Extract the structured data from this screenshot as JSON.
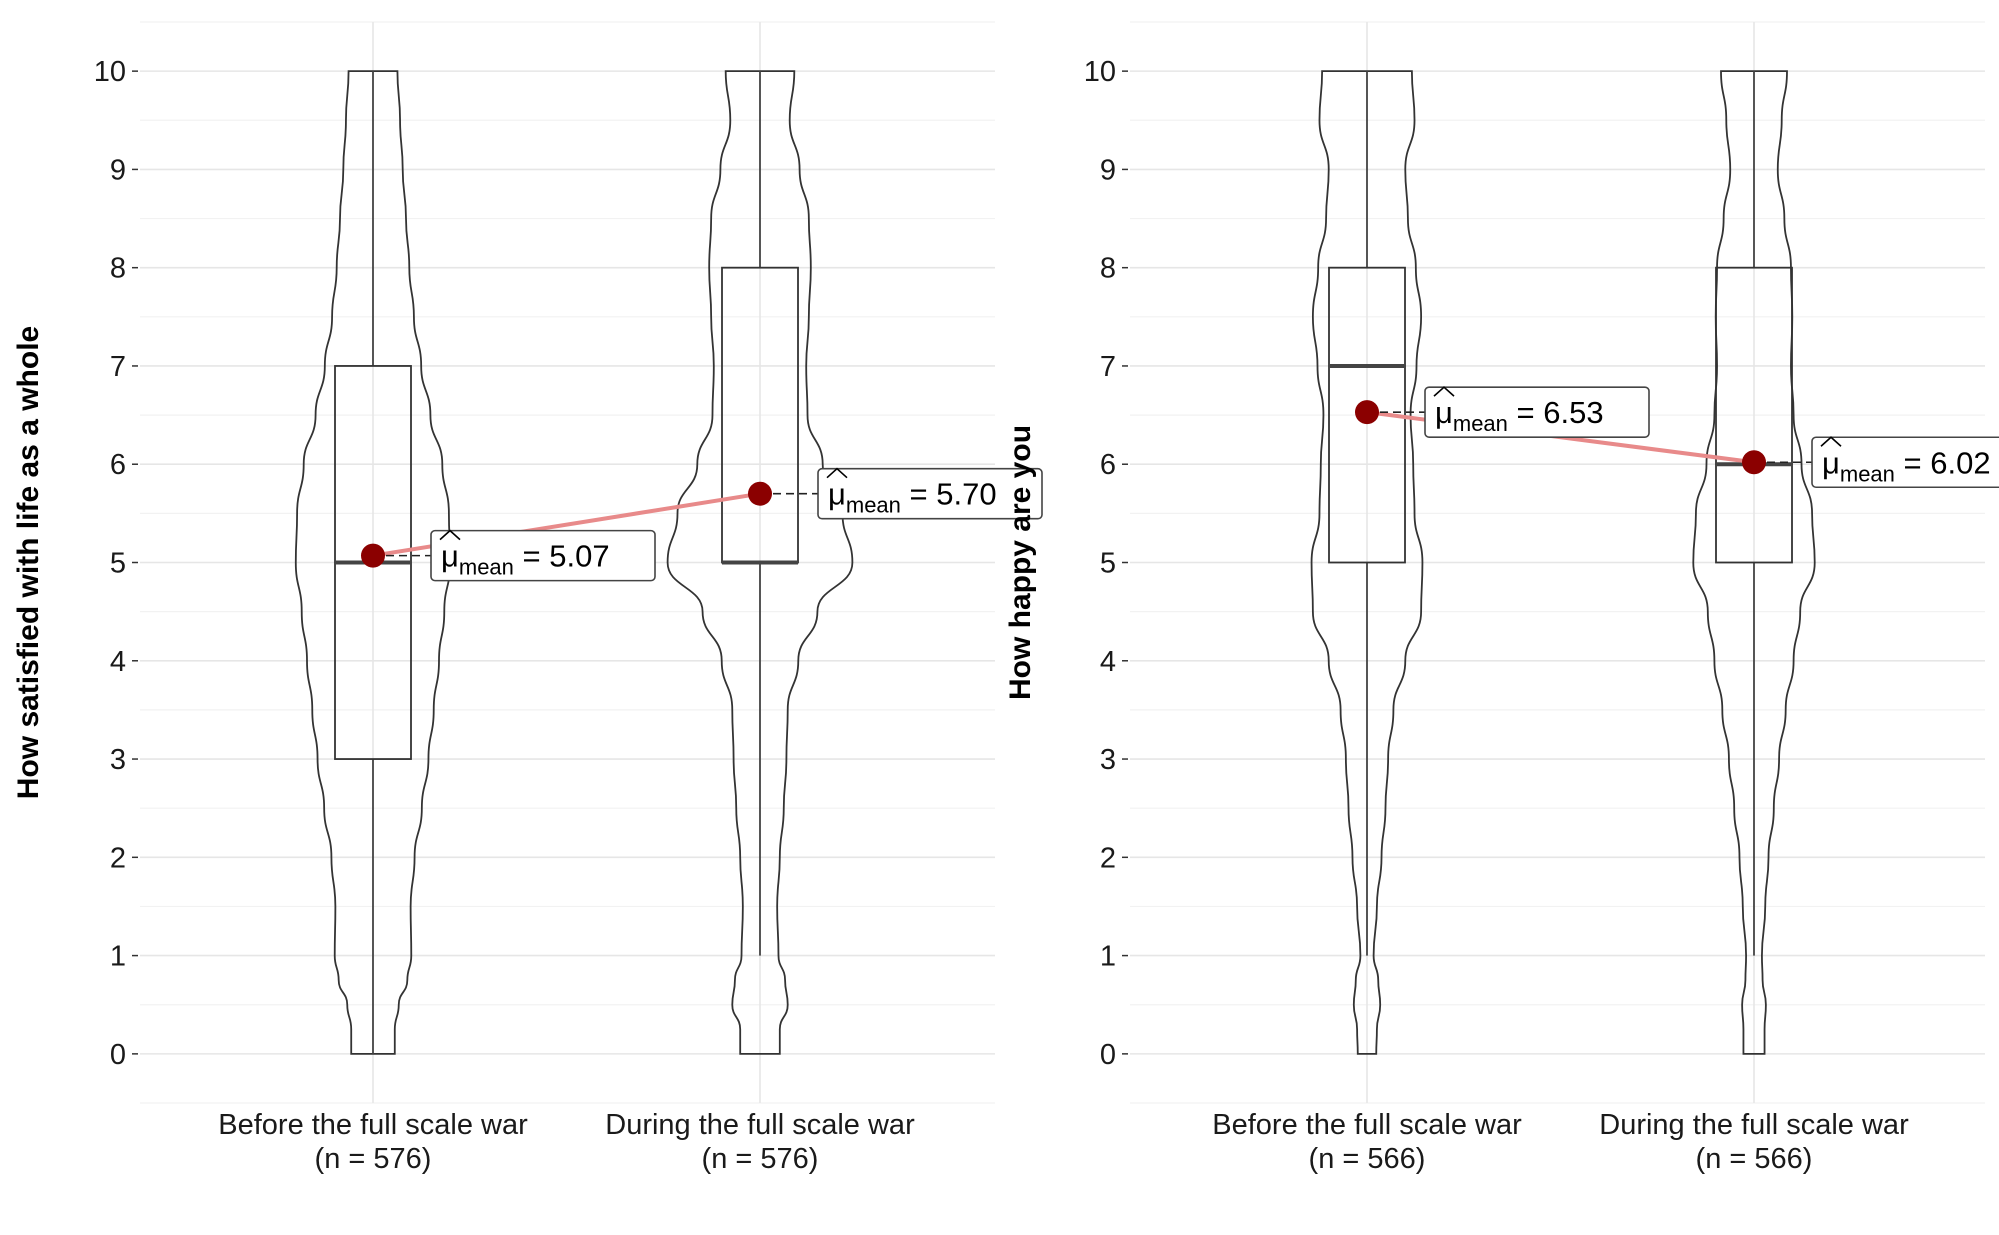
{
  "chart_data": [
    {
      "type": "violin",
      "ylabel": "How satisfied with life as a whole",
      "ylim": [
        -0.5,
        10.5
      ],
      "yticks": [
        0,
        1,
        2,
        3,
        4,
        5,
        6,
        7,
        8,
        9,
        10
      ],
      "grid": true,
      "categories": [
        "Before the full scale war",
        "During the full scale war"
      ],
      "category_n": [
        "(n = 576)",
        "(n = 576)"
      ],
      "groups": [
        {
          "category": "Before the full scale war",
          "box": {
            "min": 0,
            "q1": 3,
            "median": 5,
            "q3": 7,
            "max": 10
          },
          "mean": 5.07,
          "mean_label": "5.07",
          "density": [
            [
              0,
              0.33
            ],
            [
              0.25,
              0.33
            ],
            [
              0.5,
              0.39
            ],
            [
              0.75,
              0.52
            ],
            [
              1,
              0.58
            ],
            [
              1.5,
              0.57
            ],
            [
              2,
              0.63
            ],
            [
              2.5,
              0.74
            ],
            [
              3,
              0.84
            ],
            [
              3.5,
              0.92
            ],
            [
              4,
              1.0
            ],
            [
              4.5,
              1.08
            ],
            [
              5,
              1.17
            ],
            [
              5.5,
              1.15
            ],
            [
              6,
              1.05
            ],
            [
              6.5,
              0.87
            ],
            [
              7,
              0.73
            ],
            [
              7.5,
              0.62
            ],
            [
              8,
              0.55
            ],
            [
              8.5,
              0.5
            ],
            [
              9,
              0.45
            ],
            [
              9.5,
              0.41
            ],
            [
              10,
              0.37
            ]
          ]
        },
        {
          "category": "During the full scale war",
          "box": {
            "min": 1,
            "q1": 5,
            "median": 5,
            "q3": 8,
            "max": 10
          },
          "mean": 5.7,
          "mean_label": "5.70",
          "density": [
            [
              0,
              0.3
            ],
            [
              0.25,
              0.3
            ],
            [
              0.5,
              0.42
            ],
            [
              0.75,
              0.38
            ],
            [
              1,
              0.28
            ],
            [
              1.5,
              0.26
            ],
            [
              2,
              0.3
            ],
            [
              2.5,
              0.36
            ],
            [
              3,
              0.4
            ],
            [
              3.5,
              0.42
            ],
            [
              4,
              0.58
            ],
            [
              4.5,
              0.87
            ],
            [
              5,
              1.4
            ],
            [
              5.5,
              1.25
            ],
            [
              6,
              0.95
            ],
            [
              6.5,
              0.72
            ],
            [
              7,
              0.7
            ],
            [
              7.5,
              0.74
            ],
            [
              8,
              0.77
            ],
            [
              8.5,
              0.74
            ],
            [
              9,
              0.6
            ],
            [
              9.5,
              0.45
            ],
            [
              10,
              0.52
            ]
          ]
        }
      ],
      "trend_line_color": "#e88a8a",
      "mean_color": "#8b0000"
    },
    {
      "type": "violin",
      "ylabel": "How happy are you",
      "ylim": [
        -0.5,
        10.5
      ],
      "yticks": [
        0,
        1,
        2,
        3,
        4,
        5,
        6,
        7,
        8,
        9,
        10
      ],
      "grid": true,
      "categories": [
        "Before the full scale war",
        "During the full scale war"
      ],
      "category_n": [
        "(n = 566)",
        "(n = 566)"
      ],
      "groups": [
        {
          "category": "Before the full scale war",
          "box": {
            "min": 1,
            "q1": 5,
            "median": 7,
            "q3": 8,
            "max": 10
          },
          "mean": 6.53,
          "mean_label": "6.53",
          "density": [
            [
              0,
              0.14
            ],
            [
              0.25,
              0.15
            ],
            [
              0.5,
              0.2
            ],
            [
              0.75,
              0.17
            ],
            [
              1,
              0.1
            ],
            [
              1.5,
              0.15
            ],
            [
              2,
              0.22
            ],
            [
              2.5,
              0.28
            ],
            [
              3,
              0.32
            ],
            [
              3.5,
              0.4
            ],
            [
              4,
              0.58
            ],
            [
              4.5,
              0.82
            ],
            [
              5,
              0.84
            ],
            [
              5.5,
              0.72
            ],
            [
              6,
              0.7
            ],
            [
              6.5,
              0.66
            ],
            [
              7,
              0.75
            ],
            [
              7.5,
              0.82
            ],
            [
              8,
              0.74
            ],
            [
              8.5,
              0.62
            ],
            [
              9,
              0.58
            ],
            [
              9.5,
              0.72
            ],
            [
              10,
              0.68
            ]
          ]
        },
        {
          "category": "During the full scale war",
          "box": {
            "min": 1,
            "q1": 5,
            "median": 6,
            "q3": 8,
            "max": 10
          },
          "mean": 6.02,
          "mean_label": "6.02",
          "density": [
            [
              0,
              0.16
            ],
            [
              0.25,
              0.16
            ],
            [
              0.5,
              0.18
            ],
            [
              0.75,
              0.13
            ],
            [
              1,
              0.12
            ],
            [
              1.5,
              0.17
            ],
            [
              2,
              0.22
            ],
            [
              2.5,
              0.3
            ],
            [
              3,
              0.38
            ],
            [
              3.5,
              0.48
            ],
            [
              4,
              0.6
            ],
            [
              4.5,
              0.7
            ],
            [
              5,
              0.92
            ],
            [
              5.5,
              0.88
            ],
            [
              6,
              0.72
            ],
            [
              6.5,
              0.6
            ],
            [
              7,
              0.56
            ],
            [
              7.5,
              0.58
            ],
            [
              8,
              0.56
            ],
            [
              8.5,
              0.46
            ],
            [
              9,
              0.36
            ],
            [
              9.5,
              0.42
            ],
            [
              10,
              0.5
            ]
          ]
        }
      ],
      "trend_line_color": "#e88a8a",
      "mean_color": "#8b0000"
    }
  ]
}
